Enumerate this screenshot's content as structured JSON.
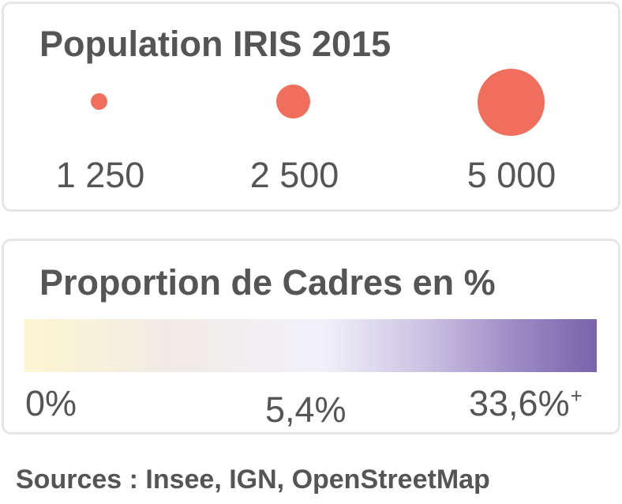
{
  "population_legend": {
    "title": "Population IRIS 2015",
    "symbol_color": "#ef6f5c",
    "sizes": [
      {
        "value": 1250,
        "label": "1 250"
      },
      {
        "value": 2500,
        "label": "2 500"
      },
      {
        "value": 5000,
        "label": "5 000"
      }
    ]
  },
  "cadres_legend": {
    "title": "Proportion de Cadres en %",
    "gradient_colors": [
      "#fdf5d0",
      "#f1ebe6",
      "#f2f1fa",
      "#cbc2e2",
      "#9c8ac4",
      "#7a63aa"
    ],
    "labels": {
      "min": "0%",
      "mid": "5,4%",
      "max": "33,6%",
      "max_suffix": "+"
    }
  },
  "sources": "Sources : Insee, IGN, OpenStreetMap"
}
